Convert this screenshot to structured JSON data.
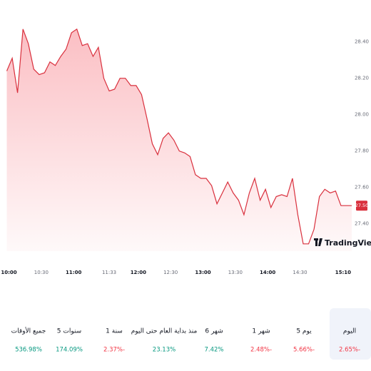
{
  "chart_data": {
    "type": "area",
    "x": [
      -2,
      3,
      8,
      13,
      18,
      23,
      28,
      33,
      38,
      43,
      48,
      53,
      58,
      63,
      68,
      73,
      78,
      83,
      88,
      93,
      98,
      103,
      108,
      113,
      118,
      123,
      128,
      133,
      138,
      143,
      148,
      153,
      158,
      163,
      168,
      173,
      178,
      183,
      188,
      193,
      198,
      203,
      208,
      213,
      218,
      223,
      228,
      233,
      238,
      243,
      248,
      253,
      258,
      263,
      268,
      273,
      278,
      283,
      288,
      293,
      298,
      303,
      308,
      313,
      318
    ],
    "values": [
      28.24,
      28.31,
      28.12,
      28.47,
      28.39,
      28.25,
      28.22,
      28.23,
      28.29,
      28.27,
      28.32,
      28.36,
      28.45,
      28.47,
      28.38,
      28.39,
      28.32,
      28.37,
      28.2,
      28.13,
      28.14,
      28.2,
      28.2,
      28.16,
      28.16,
      28.11,
      27.98,
      27.84,
      27.78,
      27.87,
      27.9,
      27.86,
      27.8,
      27.79,
      27.77,
      27.67,
      27.65,
      27.65,
      27.61,
      27.51,
      27.57,
      27.63,
      27.57,
      27.53,
      27.45,
      27.57,
      27.65,
      27.53,
      27.59,
      27.49,
      27.55,
      27.56,
      27.55,
      27.65,
      27.45,
      27.29,
      27.29,
      27.37,
      27.55,
      27.59,
      27.57,
      27.58,
      27.5,
      27.5,
      27.5
    ],
    "color": "#d9303d",
    "xlim": [
      -5,
      320
    ],
    "xticks": [
      {
        "value": 0,
        "label": "10:00"
      },
      {
        "value": 30,
        "label": "10:30"
      },
      {
        "value": 60,
        "label": "11:00"
      },
      {
        "value": 93,
        "label": "11:33"
      },
      {
        "value": 120,
        "label": "12:00"
      },
      {
        "value": 150,
        "label": "12:30"
      },
      {
        "value": 180,
        "label": "13:00"
      },
      {
        "value": 210,
        "label": "13:30"
      },
      {
        "value": 240,
        "label": "14:00"
      },
      {
        "value": 270,
        "label": "14:30"
      },
      {
        "value": 310,
        "label": "15:10"
      }
    ],
    "ylim": [
      27.25,
      28.63
    ],
    "yticks": [
      {
        "value": 27.4,
        "label": "27.40"
      },
      {
        "value": 27.6,
        "label": "27.60"
      },
      {
        "value": 27.8,
        "label": "27.80"
      },
      {
        "value": 28.0,
        "label": "28.00"
      },
      {
        "value": 28.2,
        "label": "28.20"
      },
      {
        "value": 28.4,
        "label": "28.40"
      }
    ],
    "last_price": {
      "value": 27.5,
      "label": "27.50"
    },
    "watermark": "TradingView"
  },
  "periods": [
    {
      "label": "جميع الأوقات",
      "change": "536.98%",
      "positive": true
    },
    {
      "label": "5 سنوات",
      "change": "174.09%",
      "positive": true
    },
    {
      "label": "1 سنة",
      "change": "2.37%-",
      "positive": false
    },
    {
      "label": "منذ بداية العام حتى اليوم",
      "change": "23.13%",
      "positive": true
    },
    {
      "label": "6 شهر",
      "change": "7.42%",
      "positive": true
    },
    {
      "label": "1 شهر",
      "change": "2.48%-",
      "positive": false
    },
    {
      "label": "5 يوم",
      "change": "5.66%-",
      "positive": false
    },
    {
      "label": "اليوم",
      "change": "2.65%-",
      "positive": false,
      "selected": true
    }
  ]
}
